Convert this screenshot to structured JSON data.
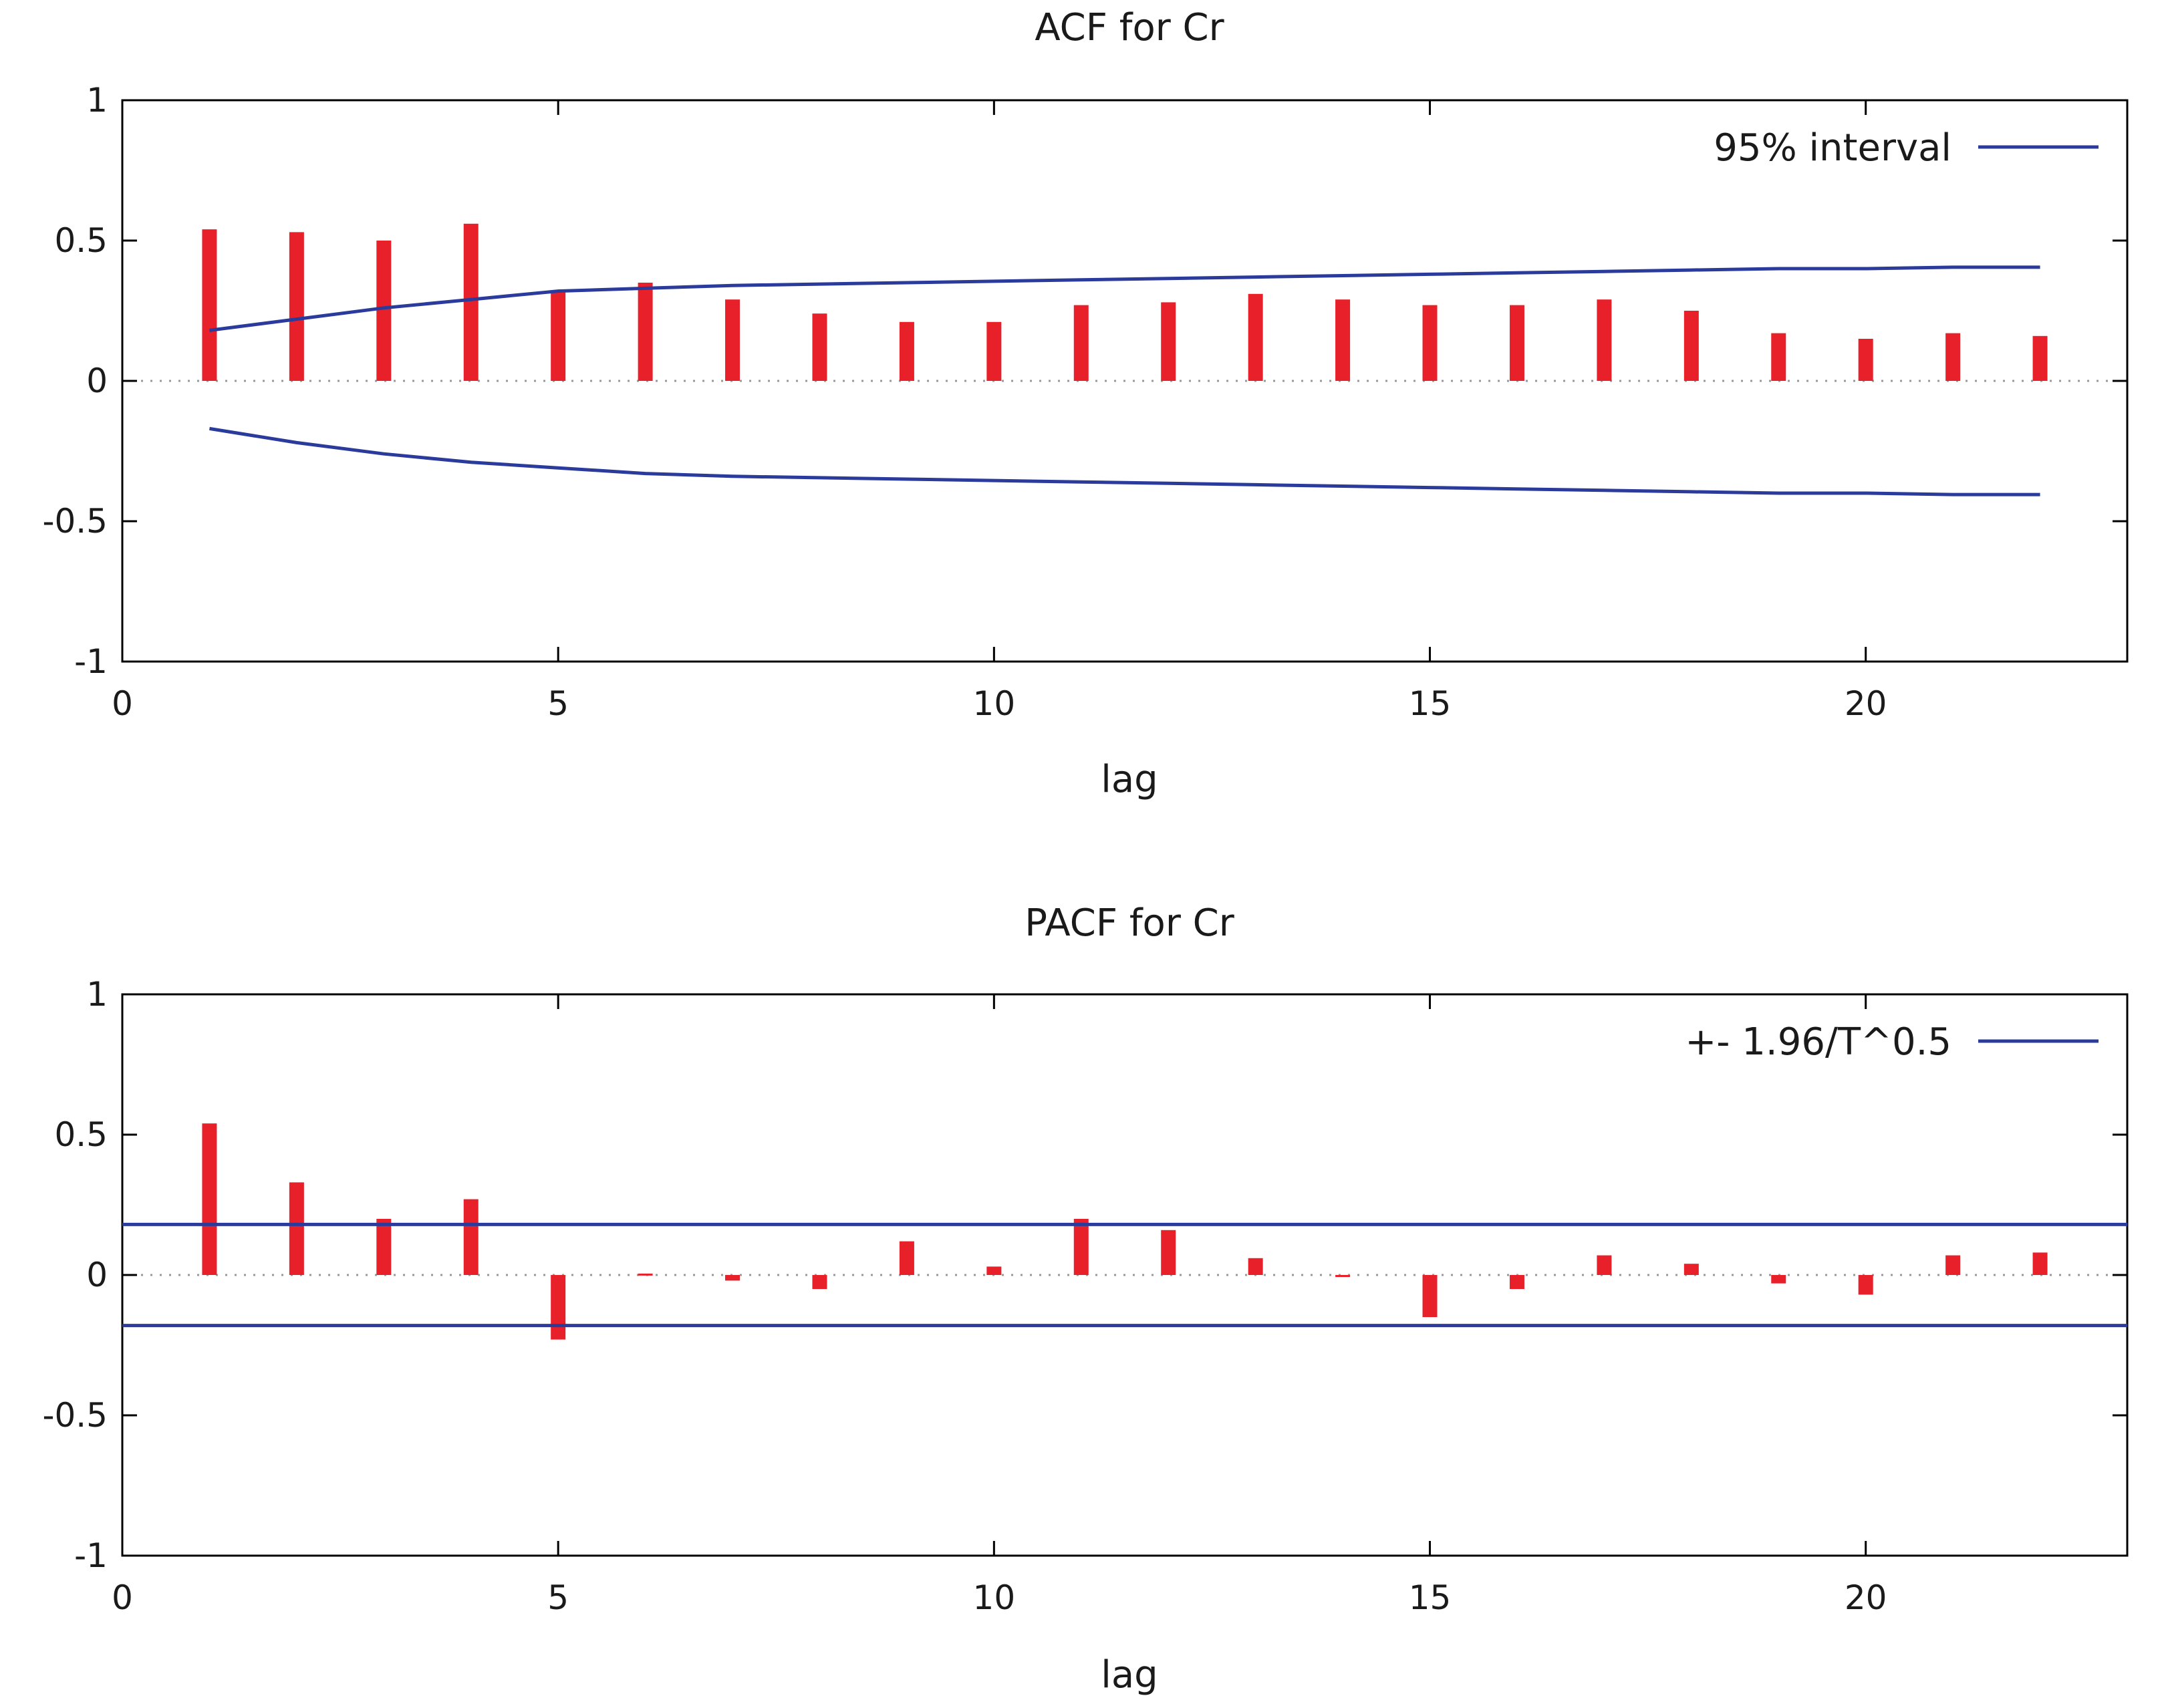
{
  "chart_data": [
    {
      "type": "bar",
      "title": "ACF for Cr",
      "xlabel": "lag",
      "ylabel": "",
      "xlim": [
        0,
        23
      ],
      "ylim": [
        -1,
        1
      ],
      "xticks": [
        "0",
        "5",
        "10",
        "15",
        "20"
      ],
      "yticks": [
        "1",
        "0.5",
        "0",
        "-0.5",
        "-1"
      ],
      "legend": {
        "label": "95% interval",
        "position": "top-right"
      },
      "bar_color": "#e8202a",
      "band_color": "#2a3b9b",
      "lags": [
        1,
        2,
        3,
        4,
        5,
        6,
        7,
        8,
        9,
        10,
        11,
        12,
        13,
        14,
        15,
        16,
        17,
        18,
        19,
        20,
        21,
        22
      ],
      "values": [
        0.54,
        0.53,
        0.5,
        0.56,
        0.32,
        0.35,
        0.29,
        0.24,
        0.21,
        0.21,
        0.27,
        0.28,
        0.31,
        0.29,
        0.27,
        0.27,
        0.29,
        0.25,
        0.17,
        0.15,
        0.17,
        0.16
      ],
      "interval_upper": [
        0.18,
        0.22,
        0.26,
        0.29,
        0.32,
        0.33,
        0.34,
        0.345,
        0.35,
        0.355,
        0.36,
        0.365,
        0.37,
        0.375,
        0.38,
        0.385,
        0.39,
        0.395,
        0.4,
        0.4,
        0.405,
        0.405
      ],
      "interval_lower": [
        -0.17,
        -0.22,
        -0.26,
        -0.29,
        -0.31,
        -0.33,
        -0.34,
        -0.345,
        -0.35,
        -0.355,
        -0.36,
        -0.365,
        -0.37,
        -0.375,
        -0.38,
        -0.385,
        -0.39,
        -0.395,
        -0.4,
        -0.4,
        -0.405,
        -0.405
      ]
    },
    {
      "type": "bar",
      "title": "PACF for Cr",
      "xlabel": "lag",
      "ylabel": "",
      "xlim": [
        0,
        23
      ],
      "ylim": [
        -1,
        1
      ],
      "xticks": [
        "0",
        "5",
        "10",
        "15",
        "20"
      ],
      "yticks": [
        "1",
        "0.5",
        "0",
        "-0.5",
        "-1"
      ],
      "legend": {
        "label": "+- 1.96/T^0.5",
        "position": "top-right"
      },
      "bar_color": "#e8202a",
      "band_color": "#2a3b9b",
      "lags": [
        1,
        2,
        3,
        4,
        5,
        6,
        7,
        8,
        9,
        10,
        11,
        12,
        13,
        14,
        15,
        16,
        17,
        18,
        19,
        20,
        21,
        22
      ],
      "values": [
        0.54,
        0.33,
        0.2,
        0.27,
        -0.23,
        0.005,
        -0.02,
        -0.05,
        0.12,
        0.03,
        0.2,
        0.16,
        0.06,
        0.0,
        -0.15,
        -0.05,
        0.07,
        0.04,
        -0.03,
        -0.07,
        0.07,
        0.08
      ],
      "band": 0.18
    }
  ]
}
